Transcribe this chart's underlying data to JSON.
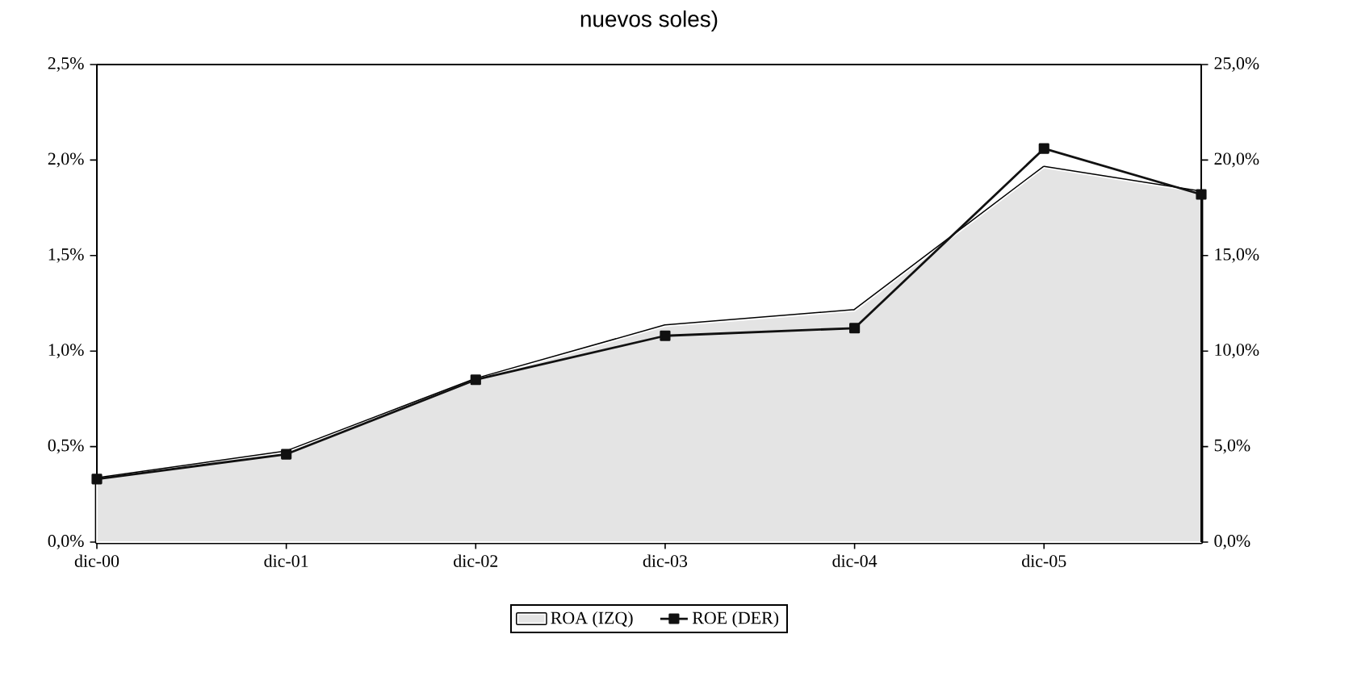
{
  "chart_data": {
    "type": "area",
    "title": "nuevos soles)",
    "x": [
      "2000-12",
      "2001-12",
      "2002-12",
      "2003-12",
      "2004-12",
      "2005-12",
      "2006-10"
    ],
    "series": [
      {
        "name": "ROA (IZQ)",
        "color": "#e4e4e4",
        "values": [
          0.33,
          0.47,
          0.85,
          1.13,
          1.21,
          1.96,
          1.83
        ]
      },
      {
        "name": "ROE (DER)",
        "type": "line",
        "axis": "y2",
        "color": "#111111",
        "marker": "square",
        "values": [
          3.3,
          4.6,
          8.5,
          10.8,
          11.2,
          20.6,
          18.2
        ]
      }
    ],
    "xlim": [
      "2000-12",
      "2006-10"
    ],
    "xticks": [
      {
        "value": "2000-12",
        "label": "dic-00"
      },
      {
        "value": "2001-12",
        "label": "dic-01"
      },
      {
        "value": "2002-12",
        "label": "dic-02"
      },
      {
        "value": "2003-12",
        "label": "dic-03"
      },
      {
        "value": "2004-12",
        "label": "dic-04"
      },
      {
        "value": "2005-12",
        "label": "dic-05"
      }
    ],
    "ylim": [
      0,
      2.5
    ],
    "yticks": [
      {
        "value": 0,
        "label": "0,0%"
      },
      {
        "value": 0.5,
        "label": "0,5%"
      },
      {
        "value": 1.0,
        "label": "1,0%"
      },
      {
        "value": 1.5,
        "label": "1,5%"
      },
      {
        "value": 2.0,
        "label": "2,0%"
      },
      {
        "value": 2.5,
        "label": "2,5%"
      }
    ],
    "y2lim": [
      0,
      25
    ],
    "y2ticks": [
      {
        "value": 0,
        "label": "0,0%"
      },
      {
        "value": 5,
        "label": "5,0%"
      },
      {
        "value": 10,
        "label": "10,0%"
      },
      {
        "value": 15,
        "label": "15,0%"
      },
      {
        "value": 20,
        "label": "20,0%"
      },
      {
        "value": 25,
        "label": "25,0%"
      }
    ],
    "legend": "bottom",
    "grid": false
  }
}
